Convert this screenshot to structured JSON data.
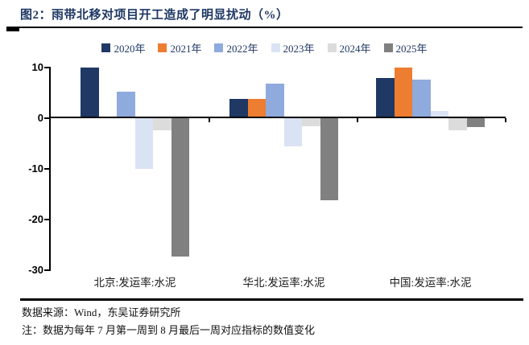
{
  "title": "图2：雨带北移对项目开工造成了明显扰动（%）",
  "footer": {
    "source": "数据来源：Wind，东吴证券研究所",
    "note": "注：数据为每年 7 月第一周到 8 月最后一周对应指标的数值变化"
  },
  "colors": {
    "title_navy": "#1f3864",
    "axis_black": "#000000",
    "page_bg": "#ffffff"
  },
  "chart_data": {
    "type": "bar",
    "title": "雨带北移对项目开工造成了明显扰动（%）",
    "categories": [
      "北京:发运率:水泥",
      "华北:发运率:水泥",
      "中国:发运率:水泥"
    ],
    "category_keys": [
      "beijing",
      "north-china",
      "china"
    ],
    "series": [
      {
        "name": "2020年",
        "key": "2020",
        "color": "#1f3864",
        "values": [
          10,
          3.8,
          7.8
        ]
      },
      {
        "name": "2021年",
        "key": "2021",
        "color": "#ed7d31",
        "values": [
          0,
          3.8,
          10
        ]
      },
      {
        "name": "2022年",
        "key": "2022",
        "color": "#8faadc",
        "values": [
          5.1,
          6.8,
          7.5
        ]
      },
      {
        "name": "2023年",
        "key": "2023",
        "color": "#dae3f3",
        "values": [
          -10,
          -5.6,
          1.4
        ]
      },
      {
        "name": "2024年",
        "key": "2024",
        "color": "#dcdcdc",
        "values": [
          -2.5,
          -1.7,
          -2.5
        ]
      },
      {
        "name": "2025年",
        "key": "2025",
        "color": "#808080",
        "values": [
          -27.4,
          -16.2,
          -1.8
        ]
      }
    ],
    "xlabel": "",
    "ylabel": "",
    "ylim": [
      -30,
      10
    ],
    "y_ticks": [
      10,
      0,
      -10,
      -20,
      -30
    ],
    "grid": false,
    "legend_position": "top"
  }
}
